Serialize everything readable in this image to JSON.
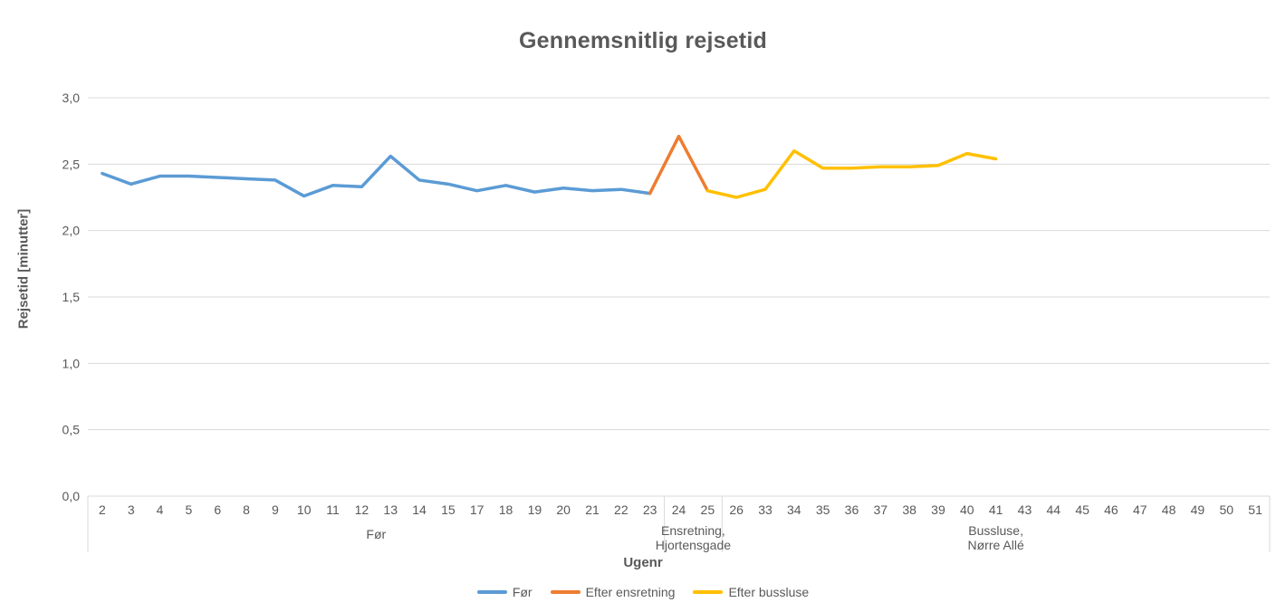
{
  "chart_data": {
    "type": "line",
    "title": "Gennemsnitlig rejsetid",
    "xlabel": "Ugenr",
    "ylabel": "Rejsetid [minutter]",
    "ylim": [
      0,
      3.0
    ],
    "ytick_step": 0.5,
    "ytick_labels": [
      "0,0",
      "0,5",
      "1,0",
      "1,5",
      "2,0",
      "2,5",
      "3,0"
    ],
    "grid": true,
    "legend_position": "bottom",
    "categories": [
      2,
      3,
      4,
      5,
      6,
      8,
      9,
      10,
      11,
      12,
      13,
      14,
      15,
      17,
      18,
      19,
      20,
      21,
      22,
      23,
      24,
      25,
      26,
      33,
      34,
      35,
      36,
      37,
      38,
      39,
      40,
      41,
      43,
      44,
      45,
      46,
      47,
      48,
      49,
      50,
      51
    ],
    "category_groups": [
      {
        "lines": [
          "Før"
        ],
        "start_week": 2,
        "end_week": 23
      },
      {
        "lines": [
          "Ensretning,",
          "Hjortensgade"
        ],
        "start_week": 24,
        "end_week": 25
      },
      {
        "lines": [
          "Bussluse,",
          "Nørre Allé"
        ],
        "start_week": 26,
        "end_week": 51
      }
    ],
    "series": [
      {
        "name": "Før",
        "color": "#5B9BD5",
        "points": [
          [
            2,
            2.43
          ],
          [
            3,
            2.35
          ],
          [
            4,
            2.41
          ],
          [
            5,
            2.41
          ],
          [
            6,
            2.4
          ],
          [
            8,
            2.39
          ],
          [
            9,
            2.38
          ],
          [
            10,
            2.26
          ],
          [
            11,
            2.34
          ],
          [
            12,
            2.33
          ],
          [
            13,
            2.56
          ],
          [
            14,
            2.38
          ],
          [
            15,
            2.35
          ],
          [
            17,
            2.3
          ],
          [
            18,
            2.34
          ],
          [
            19,
            2.29
          ],
          [
            20,
            2.32
          ],
          [
            21,
            2.3
          ],
          [
            22,
            2.31
          ],
          [
            23,
            2.28
          ]
        ]
      },
      {
        "name": "Efter ensretning",
        "color": "#ED7D31",
        "points": [
          [
            23,
            2.28
          ],
          [
            24,
            2.71
          ],
          [
            25,
            2.3
          ]
        ]
      },
      {
        "name": "Efter bussluse",
        "color": "#FFC000",
        "points": [
          [
            25,
            2.3
          ],
          [
            26,
            2.25
          ],
          [
            33,
            2.31
          ],
          [
            34,
            2.6
          ],
          [
            35,
            2.47
          ],
          [
            36,
            2.47
          ],
          [
            37,
            2.48
          ],
          [
            38,
            2.48
          ],
          [
            39,
            2.49
          ],
          [
            40,
            2.58
          ],
          [
            41,
            2.54
          ]
        ]
      }
    ],
    "colors": {
      "gridline": "#D9D9D9",
      "axis_line": "#D9D9D9",
      "text": "#595959"
    }
  }
}
